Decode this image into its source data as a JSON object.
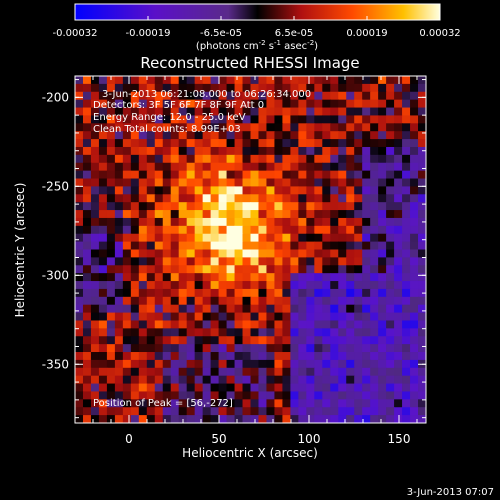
{
  "colorbar": {
    "ticks": [
      "-0.00032",
      "-0.00019",
      "-6.5e-05",
      "6.5e-05",
      "0.00019",
      "0.00032"
    ],
    "units_prefix": "(photons cm",
    "units_exp1": "-2",
    "units_mid1": " s",
    "units_exp2": "-1",
    "units_mid2": " asec",
    "units_exp3": "-2",
    "units_suffix": ")"
  },
  "plot": {
    "title": "Reconstructed RHESSI Image",
    "xlabel": "Heliocentric X (arcsec)",
    "ylabel": "Heliocentric Y (arcsec)",
    "xticks": [
      "0",
      "50",
      "100",
      "150"
    ],
    "yticks": [
      "-200",
      "-250",
      "-300",
      "-350"
    ],
    "xlim": [
      -30,
      165
    ],
    "ylim": [
      -383,
      -188
    ]
  },
  "annotations": {
    "time_range": "3-Jun-2013 06:21:08.000 to 06:26:34.000",
    "detectors": "Detectors: 3F 5F 6F 7F 8F 9F Att 0",
    "energy": "Energy Range: 12.0 - 25.0 keV",
    "clean": "Clean     Total counts: 8.99E+03",
    "peak": "Position of Peak = [56,-272]",
    "peak_position": [
      56,
      -272
    ]
  },
  "footer": {
    "timestamp": "3-Jun-2013 07:07"
  },
  "colors": {
    "background": "#000000",
    "axis": "#ffffff",
    "text": "#ffffff"
  }
}
